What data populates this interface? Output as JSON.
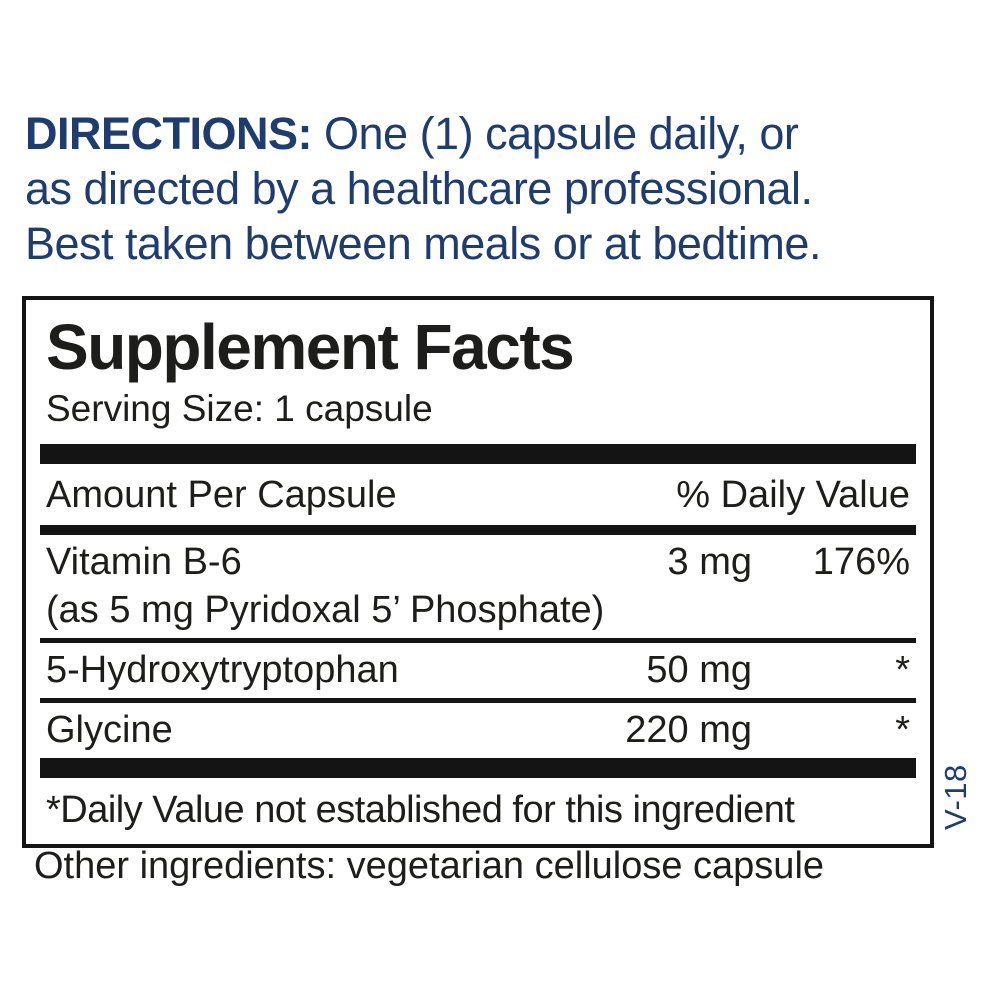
{
  "colors": {
    "navy": "#1e3c6e",
    "black": "#1d1d1b",
    "bar": "#141414"
  },
  "directions": {
    "label": "DIRECTIONS:",
    "line1": "One (1) capsule daily, or",
    "line2": "as directed by a healthcare professional.",
    "line3": "Best taken between meals or at bedtime."
  },
  "panel": {
    "title": "Supplement Facts",
    "serving_size": "Serving Size: 1 capsule",
    "header": {
      "amount": "Amount Per Capsule",
      "daily_value": "% Daily Value"
    },
    "rows": [
      {
        "name": "Vitamin B-6",
        "sub": "(as 5 mg Pyridoxal 5’ Phosphate)",
        "amount": "3 mg",
        "dv": "176%"
      },
      {
        "name": "5-Hydroxytryptophan",
        "amount": "50 mg",
        "dv": "*"
      },
      {
        "name": "Glycine",
        "amount": "220 mg",
        "dv": "*"
      }
    ],
    "footnote": "*Daily Value not established for this ingredient"
  },
  "side_label": "V-18",
  "other_ingredients": "Other ingredients: vegetarian cellulose capsule"
}
